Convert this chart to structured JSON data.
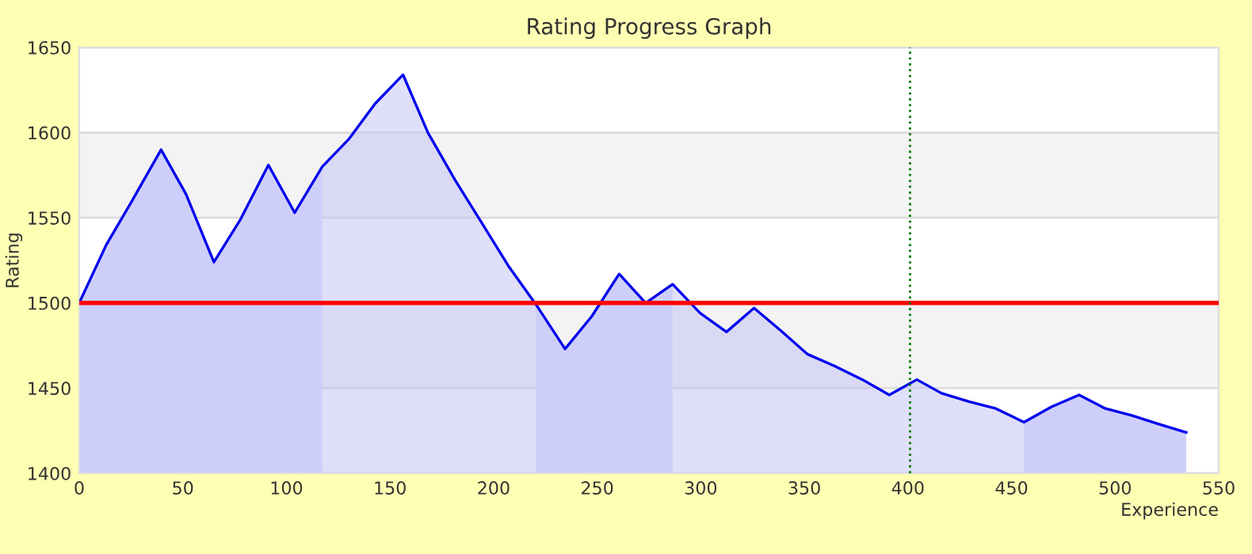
{
  "chart_data": {
    "type": "area",
    "title": "Rating Progress Graph",
    "xlabel": "Experience",
    "ylabel": "Rating",
    "xlim": [
      0,
      550
    ],
    "ylim": [
      1400,
      1650
    ],
    "xticks": [
      0,
      50,
      100,
      150,
      200,
      250,
      300,
      350,
      400,
      450,
      500,
      550
    ],
    "yticks": [
      1400,
      1450,
      1500,
      1550,
      1600,
      1650
    ],
    "grid": "y",
    "series": [
      {
        "color": "#0000ee",
        "x": [
          0,
          13,
          25.5,
          39.5,
          51.5,
          65,
          77.8,
          91.3,
          104,
          117.3,
          130,
          142.8,
          156.3,
          168.3,
          181.5,
          194.3,
          207,
          220.5,
          234.5,
          247.3,
          260.6,
          273.4,
          286.4,
          299.7,
          312.4,
          325.7,
          338.4,
          351.4,
          364.6,
          378,
          391,
          404.3,
          416.2,
          429.7,
          442.4,
          456,
          469.3,
          482.6,
          495.3,
          508,
          520.8,
          534.3
        ],
        "values": [
          1500,
          1534,
          1560,
          1590,
          1564,
          1524,
          1549,
          1581,
          1553,
          1580,
          1596,
          1617,
          1634,
          1600,
          1572,
          1547,
          1522,
          1499,
          1473,
          1492,
          1517,
          1500,
          1511,
          1494,
          1483,
          1497,
          1484,
          1470,
          1463,
          1455,
          1446,
          1455,
          1447,
          1442,
          1438,
          1430,
          1439,
          1446,
          1438,
          1434,
          1429,
          1424
        ]
      }
    ],
    "ref_lines": [
      {
        "axis": "y",
        "value": 1500,
        "color": "#ff0000",
        "line_style": "solid"
      },
      {
        "axis": "x",
        "value": 401,
        "color": "#007700",
        "line_style": "dotted"
      }
    ],
    "bands": [
      {
        "axis": "y",
        "from": 1450,
        "to": 1500,
        "color": "#f3f3f3"
      },
      {
        "axis": "y",
        "from": 1550,
        "to": 1600,
        "color": "#f3f3f3"
      },
      {
        "axis": "x",
        "from": 0,
        "to": 117.3,
        "color": "#dadeff"
      },
      {
        "axis": "x",
        "from": 220.5,
        "to": 286.4,
        "color": "#dadeff"
      },
      {
        "axis": "x",
        "from": 456,
        "to": 534.3,
        "color": "#dadeff"
      }
    ]
  }
}
